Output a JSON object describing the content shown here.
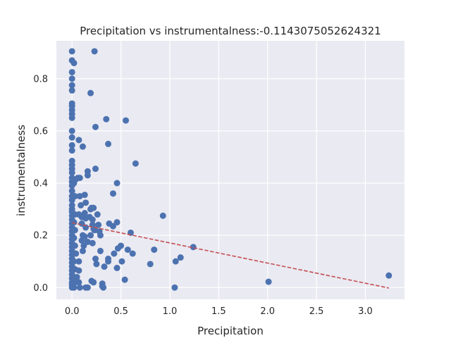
{
  "chart_data": {
    "type": "scatter",
    "title": "Precipitation vs instrumentalness:-0.1143075052624321",
    "xlabel": "Precipitation",
    "ylabel": "instrumentalness",
    "xlim": [
      -0.16,
      3.4
    ],
    "ylim": [
      -0.045,
      0.945
    ],
    "xticks": [
      0.0,
      0.5,
      1.0,
      1.5,
      2.0,
      2.5,
      3.0
    ],
    "yticks": [
      0.0,
      0.2,
      0.4,
      0.6,
      0.8
    ],
    "xtick_labels": [
      "0.0",
      "0.5",
      "1.0",
      "1.5",
      "2.0",
      "2.5",
      "3.0"
    ],
    "ytick_labels": [
      "0.0",
      "0.2",
      "0.4",
      "0.6",
      "0.8"
    ],
    "grid": true,
    "colors": {
      "background": "#eaeaf2",
      "grid": "#ffffff",
      "points": "#4c72b0",
      "trend": "#c44e52"
    },
    "trend_line": {
      "x": [
        0.0,
        3.24
      ],
      "y": [
        0.248,
        -0.002
      ],
      "style": "dashed"
    },
    "points": [
      [
        0.0,
        0.905
      ],
      [
        0.0,
        0.87
      ],
      [
        0.02,
        0.86
      ],
      [
        0.0,
        0.825
      ],
      [
        0.0,
        0.8
      ],
      [
        0.0,
        0.775
      ],
      [
        0.0,
        0.755
      ],
      [
        0.0,
        0.705
      ],
      [
        0.0,
        0.695
      ],
      [
        0.0,
        0.68
      ],
      [
        0.0,
        0.665
      ],
      [
        0.0,
        0.65
      ],
      [
        0.0,
        0.6
      ],
      [
        0.0,
        0.575
      ],
      [
        0.0,
        0.545
      ],
      [
        0.0,
        0.525
      ],
      [
        0.0,
        0.485
      ],
      [
        0.0,
        0.47
      ],
      [
        0.0,
        0.455
      ],
      [
        0.0,
        0.44
      ],
      [
        0.0,
        0.42
      ],
      [
        0.0,
        0.405
      ],
      [
        0.0,
        0.39
      ],
      [
        0.0,
        0.37
      ],
      [
        0.0,
        0.35
      ],
      [
        0.0,
        0.335
      ],
      [
        0.0,
        0.315
      ],
      [
        0.0,
        0.3
      ],
      [
        0.0,
        0.29
      ],
      [
        0.0,
        0.275
      ],
      [
        0.0,
        0.26
      ],
      [
        0.0,
        0.245
      ],
      [
        0.0,
        0.23
      ],
      [
        0.0,
        0.215
      ],
      [
        0.0,
        0.2
      ],
      [
        0.0,
        0.185
      ],
      [
        0.0,
        0.17
      ],
      [
        0.0,
        0.155
      ],
      [
        0.0,
        0.14
      ],
      [
        0.0,
        0.125
      ],
      [
        0.0,
        0.11
      ],
      [
        0.0,
        0.095
      ],
      [
        0.0,
        0.08
      ],
      [
        0.0,
        0.065
      ],
      [
        0.0,
        0.05
      ],
      [
        0.0,
        0.035
      ],
      [
        0.0,
        0.02
      ],
      [
        0.0,
        0.01
      ],
      [
        0.0,
        0.0
      ],
      [
        0.02,
        0.0
      ],
      [
        0.03,
        0.02
      ],
      [
        0.02,
        0.4
      ],
      [
        0.03,
        0.35
      ],
      [
        0.03,
        0.28
      ],
      [
        0.02,
        0.25
      ],
      [
        0.03,
        0.22
      ],
      [
        0.02,
        0.19
      ],
      [
        0.03,
        0.16
      ],
      [
        0.04,
        0.13
      ],
      [
        0.02,
        0.1
      ],
      [
        0.03,
        0.07
      ],
      [
        0.05,
        0.04
      ],
      [
        0.04,
        0.415
      ],
      [
        0.06,
        0.42
      ],
      [
        0.07,
        0.1
      ],
      [
        0.07,
        0.065
      ],
      [
        0.07,
        0.02
      ],
      [
        0.08,
        0.0
      ],
      [
        0.07,
        0.565
      ],
      [
        0.08,
        0.42
      ],
      [
        0.08,
        0.35
      ],
      [
        0.09,
        0.315
      ],
      [
        0.07,
        0.28
      ],
      [
        0.1,
        0.27
      ],
      [
        0.1,
        0.245
      ],
      [
        0.11,
        0.2
      ],
      [
        0.1,
        0.18
      ],
      [
        0.12,
        0.16
      ],
      [
        0.11,
        0.14
      ],
      [
        0.11,
        0.54
      ],
      [
        0.13,
        0.355
      ],
      [
        0.14,
        0.325
      ],
      [
        0.13,
        0.285
      ],
      [
        0.14,
        0.265
      ],
      [
        0.14,
        0.23
      ],
      [
        0.13,
        0.195
      ],
      [
        0.16,
        0.175
      ],
      [
        0.14,
        0.0
      ],
      [
        0.16,
        0.0
      ],
      [
        0.16,
        0.445
      ],
      [
        0.16,
        0.43
      ],
      [
        0.2,
        0.305
      ],
      [
        0.19,
        0.3
      ],
      [
        0.22,
        0.305
      ],
      [
        0.18,
        0.27
      ],
      [
        0.21,
        0.26
      ],
      [
        0.21,
        0.24
      ],
      [
        0.22,
        0.225
      ],
      [
        0.19,
        0.2
      ],
      [
        0.21,
        0.17
      ],
      [
        0.23,
        0.22
      ],
      [
        0.19,
        0.745
      ],
      [
        0.23,
        0.905
      ],
      [
        0.24,
        0.615
      ],
      [
        0.24,
        0.455
      ],
      [
        0.24,
        0.11
      ],
      [
        0.25,
        0.09
      ],
      [
        0.2,
        0.025
      ],
      [
        0.22,
        0.02
      ],
      [
        0.26,
        0.28
      ],
      [
        0.27,
        0.24
      ],
      [
        0.28,
        0.215
      ],
      [
        0.29,
        0.2
      ],
      [
        0.29,
        0.14
      ],
      [
        0.31,
        0.015
      ],
      [
        0.31,
        0.005
      ],
      [
        0.32,
        0.0
      ],
      [
        0.33,
        0.08
      ],
      [
        0.35,
        0.645
      ],
      [
        0.37,
        0.55
      ],
      [
        0.37,
        0.11
      ],
      [
        0.37,
        0.1
      ],
      [
        0.38,
        0.245
      ],
      [
        0.42,
        0.36
      ],
      [
        0.42,
        0.235
      ],
      [
        0.43,
        0.13
      ],
      [
        0.46,
        0.4
      ],
      [
        0.46,
        0.25
      ],
      [
        0.47,
        0.15
      ],
      [
        0.46,
        0.075
      ],
      [
        0.5,
        0.16
      ],
      [
        0.51,
        0.1
      ],
      [
        0.54,
        0.03
      ],
      [
        0.55,
        0.64
      ],
      [
        0.57,
        0.145
      ],
      [
        0.6,
        0.21
      ],
      [
        0.62,
        0.13
      ],
      [
        0.65,
        0.475
      ],
      [
        0.8,
        0.09
      ],
      [
        0.84,
        0.145
      ],
      [
        0.93,
        0.275
      ],
      [
        1.05,
        0.0
      ],
      [
        1.06,
        0.1
      ],
      [
        1.11,
        0.115
      ],
      [
        1.24,
        0.155
      ],
      [
        2.01,
        0.022
      ],
      [
        3.24,
        0.046
      ]
    ]
  }
}
